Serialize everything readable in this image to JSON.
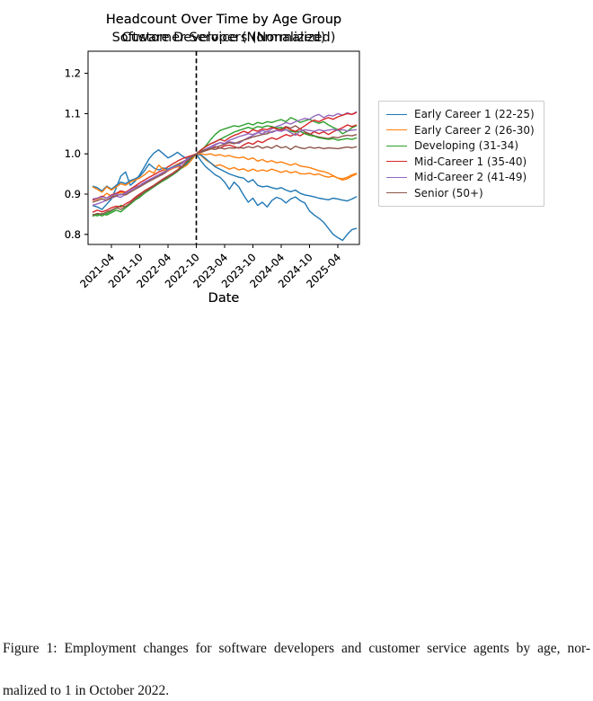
{
  "caption": {
    "line1": "Figure 1:  Employment changes for software developers and customer service agents by age, nor-",
    "line2": "malized to 1 in October 2022."
  },
  "chart_data": [
    {
      "type": "line",
      "title": "Headcount Over Time by Age Group",
      "subtitle": "Software Developers (Normalized)",
      "xlabel": "Date",
      "ylabel": "",
      "grid": false,
      "legend_position": "right",
      "ylim": [
        0.775,
        1.255
      ],
      "yticks": [
        0.8,
        0.9,
        1.0,
        1.1,
        1.2
      ],
      "x_start": "2020-12",
      "x_end": "2025-08",
      "x_freq": "monthly",
      "xtick_labels": [
        "2021-04",
        "2021-10",
        "2022-04",
        "2022-10",
        "2023-04",
        "2023-10",
        "2024-04",
        "2024-10",
        "2025-04"
      ],
      "xtick_month_index": [
        4,
        10,
        16,
        22,
        28,
        34,
        40,
        46,
        52
      ],
      "vline": {
        "month_index": 22,
        "date": "2022-10",
        "style": "dashed",
        "color": "#000000"
      },
      "series": [
        {
          "name": "Early Career 1 (22-25)",
          "color": "#1f77b4",
          "values": [
            0.872,
            0.868,
            0.862,
            0.875,
            0.888,
            0.915,
            0.945,
            0.955,
            0.922,
            0.932,
            0.948,
            0.968,
            0.988,
            1.002,
            1.01,
            1.0,
            0.99,
            0.996,
            1.004,
            0.995,
            0.988,
            0.994,
            1.0,
            0.982,
            0.968,
            0.958,
            0.948,
            0.942,
            0.93,
            0.912,
            0.93,
            0.918,
            0.898,
            0.88,
            0.89,
            0.872,
            0.88,
            0.868,
            0.884,
            0.892,
            0.888,
            0.878,
            0.888,
            0.893,
            0.884,
            0.878,
            0.858,
            0.848,
            0.84,
            0.83,
            0.815,
            0.8,
            0.792,
            0.785,
            0.8,
            0.812,
            0.815
          ]
        },
        {
          "name": "Early Career 2 (26-30)",
          "color": "#ff7f0e",
          "values": [
            0.885,
            0.888,
            0.892,
            0.902,
            0.895,
            0.9,
            0.905,
            0.902,
            0.912,
            0.918,
            0.922,
            0.928,
            0.935,
            0.942,
            0.948,
            0.955,
            0.962,
            0.968,
            0.975,
            0.98,
            0.986,
            0.992,
            1.0,
            0.996,
            0.985,
            0.978,
            0.97,
            0.973,
            0.968,
            0.962,
            0.966,
            0.96,
            0.963,
            0.957,
            0.962,
            0.957,
            0.96,
            0.957,
            0.962,
            0.958,
            0.954,
            0.958,
            0.953,
            0.956,
            0.951,
            0.95,
            0.952,
            0.948,
            0.95,
            0.945,
            0.942,
            0.945,
            0.94,
            0.938,
            0.942,
            0.948,
            0.952
          ]
        },
        {
          "name": "Developing (31-34)",
          "color": "#2ca02c",
          "values": [
            0.845,
            0.85,
            0.846,
            0.852,
            0.858,
            0.865,
            0.872,
            0.868,
            0.878,
            0.888,
            0.898,
            0.908,
            0.915,
            0.922,
            0.93,
            0.938,
            0.945,
            0.952,
            0.96,
            0.968,
            0.978,
            0.988,
            1.0,
            1.008,
            1.02,
            1.035,
            1.048,
            1.058,
            1.062,
            1.066,
            1.07,
            1.068,
            1.072,
            1.076,
            1.072,
            1.078,
            1.075,
            1.08,
            1.078,
            1.082,
            1.085,
            1.08,
            1.09,
            1.085,
            1.078,
            1.082,
            1.086,
            1.08,
            1.076,
            1.08,
            1.072,
            1.066,
            1.06,
            1.05,
            1.056,
            1.065,
            1.07
          ]
        },
        {
          "name": "Mid-Career 1 (35-40)",
          "color": "#d62728",
          "values": [
            0.885,
            0.89,
            0.895,
            0.89,
            0.898,
            0.902,
            0.908,
            0.905,
            0.912,
            0.92,
            0.928,
            0.935,
            0.942,
            0.948,
            0.955,
            0.96,
            0.968,
            0.975,
            0.982,
            0.988,
            0.992,
            0.996,
            1.0,
            1.004,
            1.008,
            1.012,
            1.018,
            1.014,
            1.02,
            1.022,
            1.018,
            1.014,
            1.022,
            1.028,
            1.024,
            1.032,
            1.028,
            1.035,
            1.04,
            1.036,
            1.042,
            1.048,
            1.044,
            1.05,
            1.045,
            1.052,
            1.048,
            1.055,
            1.05,
            1.055,
            1.048,
            1.055,
            1.06,
            1.065,
            1.072,
            1.068,
            1.072
          ]
        },
        {
          "name": "Mid-Career 2 (41-49)",
          "color": "#9467bd",
          "values": [
            0.872,
            0.876,
            0.88,
            0.885,
            0.89,
            0.895,
            0.892,
            0.9,
            0.906,
            0.912,
            0.92,
            0.928,
            0.935,
            0.94,
            0.946,
            0.952,
            0.958,
            0.965,
            0.972,
            0.98,
            0.986,
            0.993,
            1.0,
            1.005,
            1.01,
            1.016,
            1.022,
            1.028,
            1.024,
            1.03,
            1.028,
            1.026,
            1.034,
            1.04,
            1.046,
            1.052,
            1.058,
            1.054,
            1.062,
            1.068,
            1.072,
            1.078,
            1.074,
            1.08,
            1.084,
            1.088,
            1.086,
            1.094,
            1.098,
            1.09,
            1.096,
            1.094,
            1.1,
            1.096,
            1.102,
            1.098,
            1.105
          ]
        },
        {
          "name": "Senior (50+)",
          "color": "#8c564b",
          "values": [
            0.88,
            0.884,
            0.888,
            0.885,
            0.892,
            0.896,
            0.9,
            0.898,
            0.905,
            0.912,
            0.918,
            0.925,
            0.932,
            0.938,
            0.944,
            0.95,
            0.958,
            0.964,
            0.972,
            0.978,
            0.985,
            0.992,
            1.0,
            1.004,
            1.008,
            1.012,
            1.016,
            1.02,
            1.024,
            1.028,
            1.025,
            1.03,
            1.034,
            1.038,
            1.042,
            1.045,
            1.048,
            1.05,
            1.055,
            1.058,
            1.062,
            1.068,
            1.064,
            1.07,
            1.062,
            1.055,
            1.05,
            1.045,
            1.042,
            1.04,
            1.038,
            1.042,
            1.04,
            1.044,
            1.046,
            1.045,
            1.048
          ]
        }
      ]
    },
    {
      "type": "line",
      "title": "Headcount Over Time by Age Group",
      "subtitle": "Customer Service (Normalized)",
      "xlabel": "Date",
      "ylabel": "",
      "grid": false,
      "legend_position": "right",
      "ylim": [
        0.775,
        1.255
      ],
      "yticks": [
        0.8,
        0.9,
        1.0,
        1.1,
        1.2
      ],
      "x_start": "2020-12",
      "x_end": "2025-08",
      "x_freq": "monthly",
      "xtick_labels": [
        "2021-04",
        "2021-10",
        "2022-04",
        "2022-10",
        "2023-04",
        "2023-10",
        "2024-04",
        "2024-10",
        "2025-04"
      ],
      "xtick_month_index": [
        4,
        10,
        16,
        22,
        28,
        34,
        40,
        46,
        52
      ],
      "vline": {
        "month_index": 22,
        "date": "2022-10",
        "style": "dashed",
        "color": "#000000"
      },
      "series": [
        {
          "name": "Early Career 1 (22-25)",
          "color": "#1f77b4",
          "values": [
            0.92,
            0.916,
            0.908,
            0.92,
            0.912,
            0.922,
            0.93,
            0.926,
            0.934,
            0.938,
            0.944,
            0.958,
            0.975,
            0.965,
            0.96,
            0.965,
            0.962,
            0.968,
            0.972,
            0.968,
            0.975,
            0.988,
            1.0,
            0.997,
            0.988,
            0.978,
            0.968,
            0.962,
            0.956,
            0.95,
            0.946,
            0.942,
            0.94,
            0.93,
            0.936,
            0.922,
            0.918,
            0.92,
            0.916,
            0.913,
            0.916,
            0.91,
            0.906,
            0.91,
            0.902,
            0.898,
            0.896,
            0.893,
            0.89,
            0.888,
            0.886,
            0.89,
            0.888,
            0.885,
            0.883,
            0.888,
            0.894
          ]
        },
        {
          "name": "Early Career 2 (26-30)",
          "color": "#ff7f0e",
          "values": [
            0.918,
            0.912,
            0.905,
            0.918,
            0.91,
            0.918,
            0.926,
            0.922,
            0.93,
            0.935,
            0.94,
            0.948,
            0.958,
            0.952,
            0.972,
            0.962,
            0.958,
            0.964,
            0.968,
            0.965,
            0.972,
            0.985,
            1.0,
            1.0,
            0.998,
            1.0,
            0.996,
            0.998,
            0.994,
            0.996,
            0.992,
            0.99,
            0.992,
            0.986,
            0.99,
            0.982,
            0.986,
            0.98,
            0.983,
            0.978,
            0.98,
            0.976,
            0.972,
            0.976,
            0.97,
            0.968,
            0.966,
            0.962,
            0.958,
            0.956,
            0.952,
            0.946,
            0.94,
            0.935,
            0.938,
            0.945,
            0.95
          ]
        },
        {
          "name": "Developing (31-34)",
          "color": "#2ca02c",
          "values": [
            0.85,
            0.846,
            0.852,
            0.848,
            0.854,
            0.86,
            0.856,
            0.866,
            0.875,
            0.885,
            0.892,
            0.902,
            0.91,
            0.918,
            0.926,
            0.933,
            0.94,
            0.948,
            0.956,
            0.966,
            0.98,
            0.99,
            1.0,
            1.01,
            1.018,
            1.025,
            1.03,
            1.036,
            1.042,
            1.048,
            1.054,
            1.058,
            1.062,
            1.066,
            1.062,
            1.068,
            1.066,
            1.07,
            1.068,
            1.064,
            1.066,
            1.06,
            1.056,
            1.054,
            1.056,
            1.05,
            1.046,
            1.044,
            1.04,
            1.038,
            1.036,
            1.038,
            1.034,
            1.036,
            1.038,
            1.036,
            1.04
          ]
        },
        {
          "name": "Mid-Career 1 (35-40)",
          "color": "#d62728",
          "values": [
            0.855,
            0.86,
            0.856,
            0.86,
            0.866,
            0.87,
            0.868,
            0.876,
            0.882,
            0.892,
            0.9,
            0.908,
            0.915,
            0.922,
            0.93,
            0.938,
            0.945,
            0.952,
            0.96,
            0.97,
            0.982,
            0.992,
            1.0,
            1.01,
            1.018,
            1.025,
            1.03,
            1.036,
            1.032,
            1.04,
            1.046,
            1.05,
            1.056,
            1.052,
            1.06,
            1.056,
            1.062,
            1.06,
            1.066,
            1.062,
            1.058,
            1.066,
            1.06,
            1.056,
            1.062,
            1.07,
            1.078,
            1.084,
            1.08,
            1.086,
            1.09,
            1.086,
            1.092,
            1.096,
            1.1,
            1.098,
            1.103
          ]
        },
        {
          "name": "Mid-Career 2 (41-49)",
          "color": "#9467bd",
          "values": [
            0.888,
            0.89,
            0.893,
            0.89,
            0.896,
            0.9,
            0.898,
            0.903,
            0.91,
            0.916,
            0.922,
            0.93,
            0.936,
            0.942,
            0.948,
            0.954,
            0.96,
            0.966,
            0.97,
            0.976,
            0.986,
            0.993,
            1.0,
            1.006,
            1.012,
            1.018,
            1.024,
            1.028,
            1.026,
            1.034,
            1.038,
            1.043,
            1.046,
            1.05,
            1.048,
            1.053,
            1.05,
            1.056,
            1.053,
            1.058,
            1.056,
            1.06,
            1.053,
            1.046,
            1.056,
            1.06,
            1.058,
            1.056,
            1.06,
            1.057,
            1.059,
            1.061,
            1.058,
            1.06,
            1.057,
            1.059,
            1.06
          ]
        },
        {
          "name": "Senior (50+)",
          "color": "#8c564b",
          "values": [
            0.848,
            0.852,
            0.85,
            0.856,
            0.86,
            0.866,
            0.862,
            0.87,
            0.878,
            0.888,
            0.896,
            0.906,
            0.912,
            0.92,
            0.928,
            0.936,
            0.943,
            0.95,
            0.958,
            0.968,
            0.982,
            0.992,
            1.0,
            1.006,
            1.01,
            1.013,
            1.011,
            1.015,
            1.012,
            1.015,
            1.014,
            1.016,
            1.014,
            1.018,
            1.015,
            1.02,
            1.014,
            1.018,
            1.014,
            1.021,
            1.015,
            1.018,
            1.011,
            1.019,
            1.015,
            1.013,
            1.017,
            1.014,
            1.016,
            1.013,
            1.015,
            1.014,
            1.013,
            1.015,
            1.017,
            1.015,
            1.018
          ]
        }
      ]
    }
  ]
}
